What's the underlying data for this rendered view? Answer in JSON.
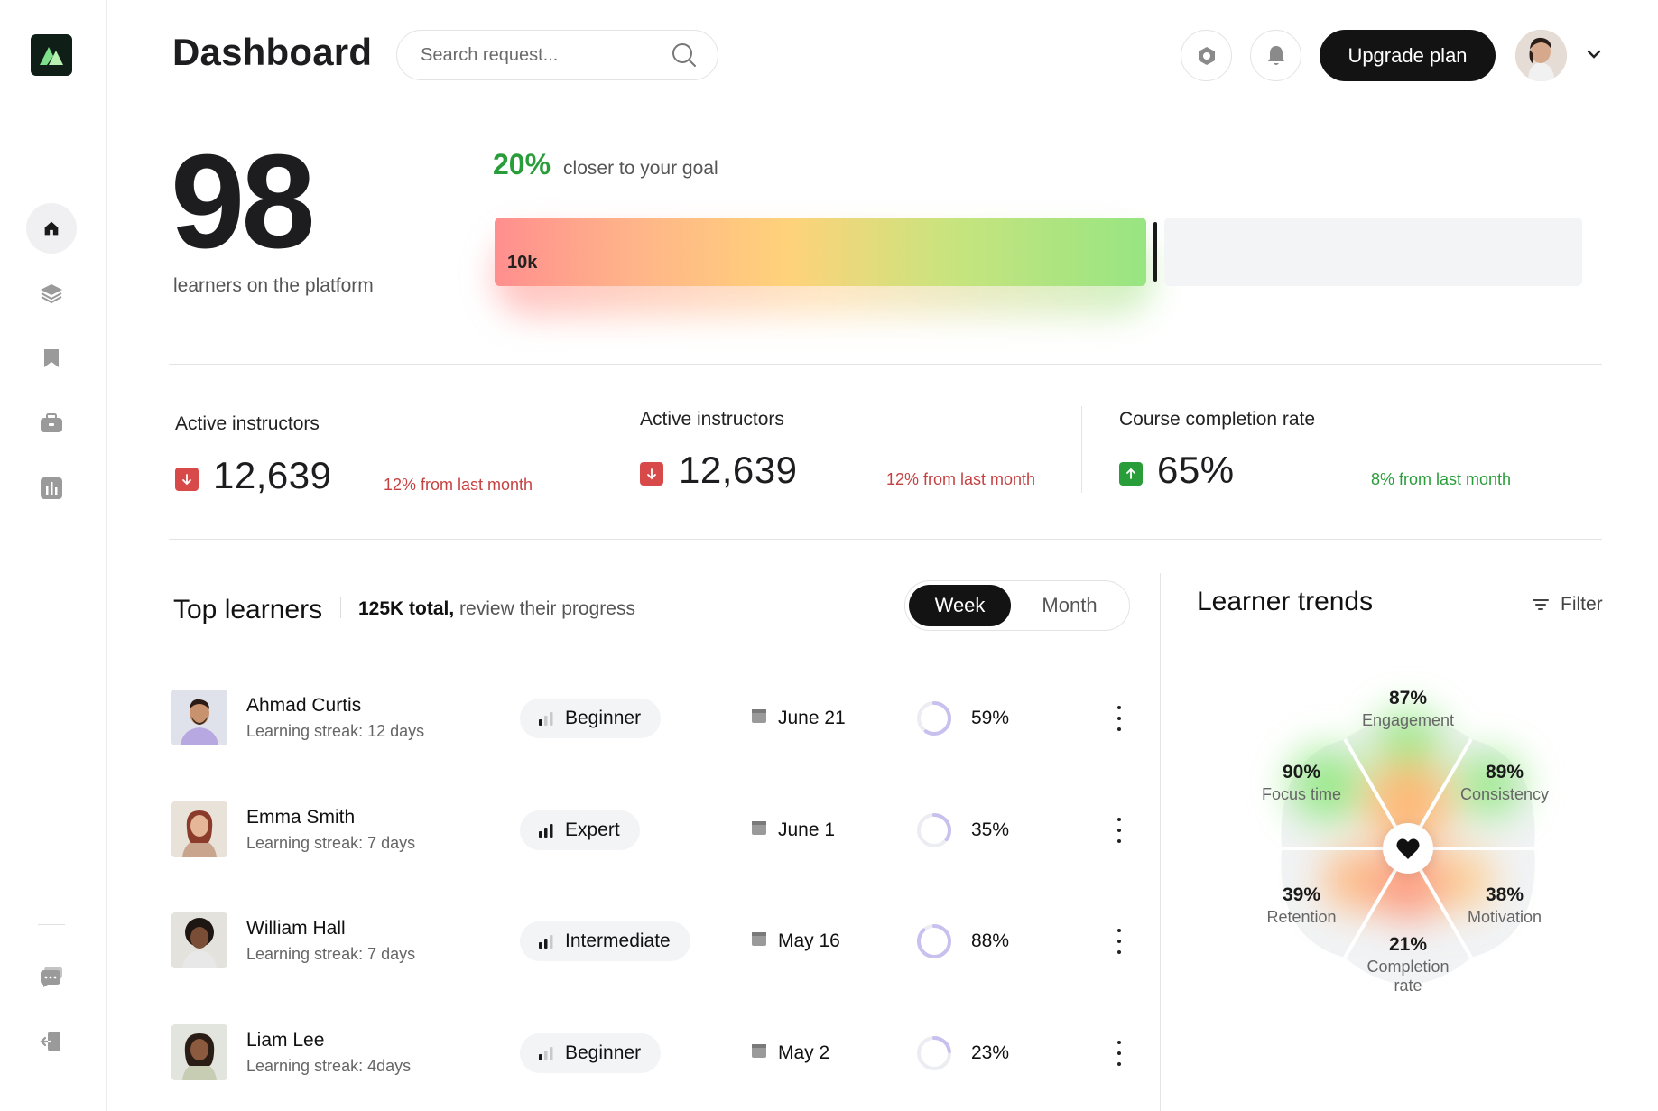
{
  "header": {
    "title": "Dashboard",
    "search_placeholder": "Search request...",
    "upgrade_label": "Upgrade plan"
  },
  "sidebar": {
    "items": [
      {
        "icon": "home-icon",
        "active": true
      },
      {
        "icon": "layers-icon",
        "active": false
      },
      {
        "icon": "bookmark-icon",
        "active": false
      },
      {
        "icon": "briefcase-icon",
        "active": false
      },
      {
        "icon": "bar-chart-icon",
        "active": false
      }
    ],
    "bottom_items": [
      {
        "icon": "chat-icon"
      },
      {
        "icon": "logout-icon"
      }
    ]
  },
  "hero": {
    "learners_count": "98",
    "learners_label": "learners on the platform",
    "goal_percent": "20%",
    "goal_text": "closer to your goal",
    "bar_label": "10k",
    "bar_progress": 0.6
  },
  "stats": [
    {
      "title": "Active instructors",
      "value": "12,639",
      "trend": "down",
      "change": "12% from last month"
    },
    {
      "title": "Active instructors",
      "value": "12,639",
      "trend": "down",
      "change": "12% from last month"
    },
    {
      "title": "Course completion rate",
      "value": "65%",
      "trend": "up",
      "change": "8% from last month"
    }
  ],
  "top_learners": {
    "title": "Top learners",
    "total_bold": "125K total,",
    "total_rest": "review their progress",
    "toggle": {
      "week": "Week",
      "month": "Month",
      "selected": "Week"
    },
    "rows": [
      {
        "name": "Ahmad Curtis",
        "streak": "Learning streak: 12 days",
        "level": "Beginner",
        "level_bars": 1,
        "date": "June 21",
        "progress": "59%",
        "progress_value": 59
      },
      {
        "name": "Emma Smith",
        "streak": "Learning streak: 7 days",
        "level": "Expert",
        "level_bars": 3,
        "date": "June 1",
        "progress": "35%",
        "progress_value": 35
      },
      {
        "name": "William Hall",
        "streak": "Learning streak: 7 days",
        "level": "Intermediate",
        "level_bars": 2,
        "date": "May 16",
        "progress": "88%",
        "progress_value": 88
      },
      {
        "name": "Liam Lee",
        "streak": "Learning streak: 4days",
        "level": "Beginner",
        "level_bars": 1,
        "date": "May 2",
        "progress": "23%",
        "progress_value": 23
      }
    ]
  },
  "trends": {
    "title": "Learner trends",
    "filter_label": "Filter",
    "petals": [
      {
        "value": "87%",
        "name": "Engagement"
      },
      {
        "value": "89%",
        "name": "Consistency"
      },
      {
        "value": "38%",
        "name": "Motivation"
      },
      {
        "value": "21%",
        "name": "Completion rate"
      },
      {
        "value": "39%",
        "name": "Retention"
      },
      {
        "value": "90%",
        "name": "Focus time"
      }
    ]
  },
  "colors": {
    "accent_dark": "#131313",
    "positive": "#2a9d3b",
    "negative": "#c64242"
  }
}
